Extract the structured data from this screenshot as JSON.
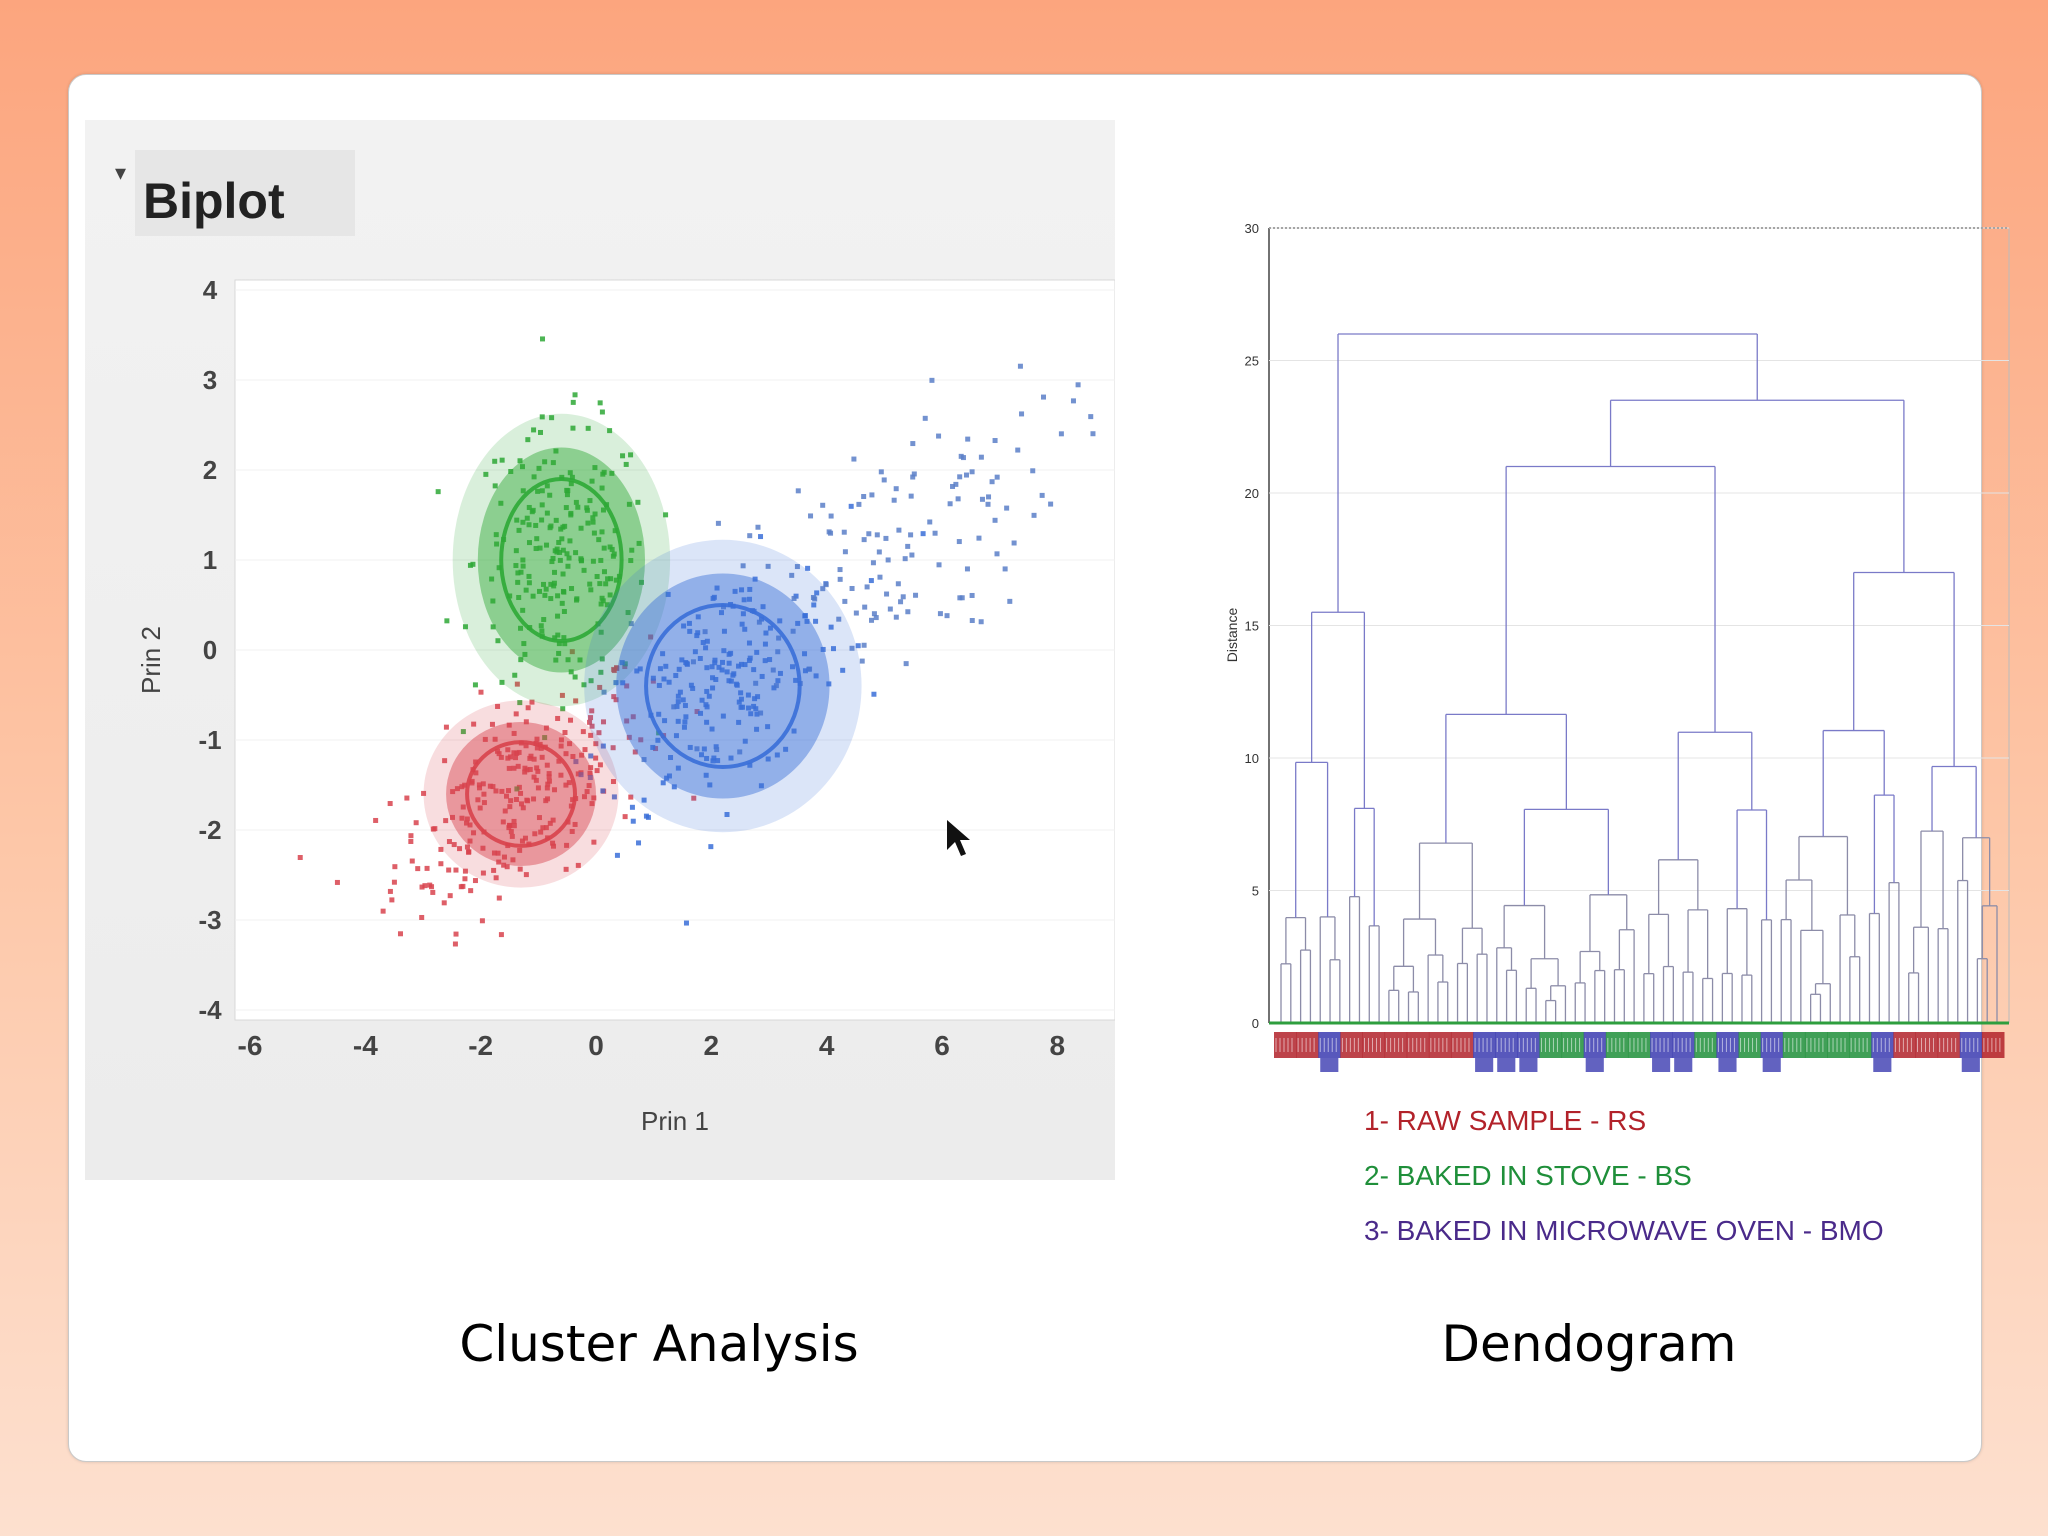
{
  "captions": {
    "left": "Cluster Analysis",
    "right": "Dendogram"
  },
  "chart_data": [
    {
      "type": "scatter",
      "title": "Biplot",
      "xlabel": "Prin 1",
      "ylabel": "Prin 2",
      "xlim": [
        -6,
        9
      ],
      "ylim": [
        -4,
        4
      ],
      "xticks": [
        "-6",
        "-4",
        "-2",
        "0",
        "2",
        "4",
        "6",
        "8"
      ],
      "yticks": [
        "4",
        "3",
        "2",
        "1",
        "0",
        "-1",
        "-2",
        "-3",
        "-4"
      ],
      "series": [
        {
          "color": "#d8434d",
          "center": [
            -1.3,
            -1.6
          ],
          "spread": [
            1.1,
            0.55
          ],
          "n": 260,
          "ellipse": [
            1.3,
            0.8
          ]
        },
        {
          "color": "#2ea836",
          "center": [
            -0.6,
            1.0
          ],
          "spread": [
            0.75,
            0.75
          ],
          "n": 220,
          "ellipse": [
            1.45,
            1.25
          ]
        },
        {
          "color": "#3a6fd8",
          "center": [
            2.2,
            -0.4
          ],
          "spread": [
            1.1,
            0.6
          ],
          "n": 200,
          "ellipse": [
            1.85,
            1.25
          ]
        },
        {
          "color": "#5a7fc8",
          "center": [
            4.8,
            1.0
          ],
          "spread": [
            1.6,
            0.7
          ],
          "n": 140,
          "ellipse": null
        }
      ]
    },
    {
      "type": "dendrogram",
      "ylabel": "Distance",
      "ylim": [
        0,
        30
      ],
      "yticks": [
        "0",
        "5",
        "10",
        "15",
        "20",
        "25",
        "30"
      ],
      "legend": [
        {
          "label": "1- RAW SAMPLE - RS",
          "color": "#b2222a"
        },
        {
          "label": "2- BAKED IN STOVE - BS",
          "color": "#1f8f3a"
        },
        {
          "label": "3- BAKED IN MICROWAVE OVEN - BMO",
          "color": "#4a2a8a"
        }
      ],
      "group_bar": [
        "red",
        "red",
        "blue",
        "red",
        "red",
        "red",
        "red",
        "red",
        "red",
        "blue",
        "blue",
        "blue",
        "green",
        "green",
        "blue",
        "green",
        "green",
        "blue",
        "blue",
        "green",
        "blue",
        "green",
        "blue",
        "green",
        "green",
        "green",
        "green",
        "blue",
        "red",
        "red",
        "red",
        "blue",
        "red"
      ],
      "group_colors": {
        "red": "#b2222a",
        "green": "#1f8f3a",
        "blue": "#3b3bb0"
      }
    }
  ]
}
